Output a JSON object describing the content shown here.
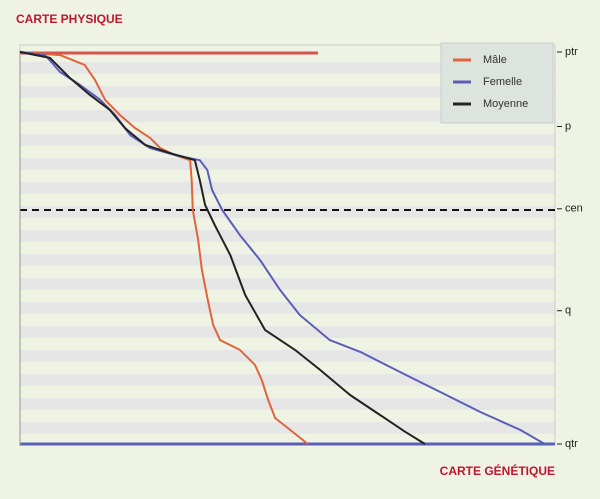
{
  "chart_data": {
    "type": "line",
    "title": "CARTE PHYSIQUE",
    "x_label": "CARTE GÉNÉTIQUE",
    "xlim": [
      0,
      100
    ],
    "ylim": [
      0,
      100
    ],
    "yticks": [
      {
        "value": 0,
        "label": "ptr"
      },
      {
        "value": 19,
        "label": "p"
      },
      {
        "value": 40,
        "label": "cen"
      },
      {
        "value": 66,
        "label": "q"
      },
      {
        "value": 100,
        "label": "qtr"
      }
    ],
    "legend": "top-right",
    "series": [
      {
        "name": "Mâle",
        "color": "#e0643c",
        "x": [
          0,
          7.5,
          12.1,
          14.0,
          15.9,
          18.7,
          21.5,
          24.3,
          26.2,
          29.0,
          31.8,
          32.1,
          32.3,
          33.3,
          34.0,
          35.1,
          36.1,
          37.4,
          41.1,
          43.9,
          45.2,
          46.4,
          47.7,
          50.5,
          53.8
        ],
        "values": [
          0,
          0.8,
          3.3,
          7.1,
          12.2,
          16.1,
          19.4,
          21.9,
          24.5,
          26.3,
          27.6,
          32.7,
          40.3,
          48.0,
          55.6,
          63.3,
          69.6,
          73.5,
          76.0,
          79.8,
          83.7,
          88.8,
          93.4,
          96.4,
          100
        ]
      },
      {
        "name": "Femelle",
        "color": "#5b5fb8",
        "x": [
          0,
          4.7,
          7.5,
          11.2,
          15.0,
          17.8,
          20.6,
          24.3,
          29.0,
          33.6,
          35.0,
          35.9,
          37.8,
          41.1,
          44.9,
          48.6,
          52.3,
          57.9,
          63.6,
          71.0,
          78.5,
          86.0,
          93.5,
          98.1
        ],
        "values": [
          0,
          0.8,
          5.1,
          8.4,
          12.2,
          16.1,
          21.2,
          24.5,
          26.3,
          27.6,
          30.1,
          35.2,
          40.3,
          46.7,
          53.1,
          60.7,
          67.1,
          73.5,
          76.5,
          81.6,
          86.7,
          91.8,
          96.4,
          100
        ]
      },
      {
        "name": "Moyenne",
        "color": "#222222",
        "x": [
          0,
          5.6,
          9.3,
          13.1,
          16.8,
          19.6,
          23.4,
          28.0,
          32.7,
          33.6,
          34.6,
          36.4,
          39.3,
          42.1,
          45.8,
          51.4,
          56.1,
          61.7,
          67.3,
          72.0,
          75.7
        ],
        "values": [
          0,
          1.5,
          6.6,
          11.0,
          14.8,
          19.4,
          23.7,
          25.8,
          27.6,
          32.7,
          39.0,
          44.1,
          51.8,
          62.0,
          70.9,
          76.0,
          81.1,
          87.5,
          92.6,
          96.9,
          100
        ]
      }
    ]
  }
}
